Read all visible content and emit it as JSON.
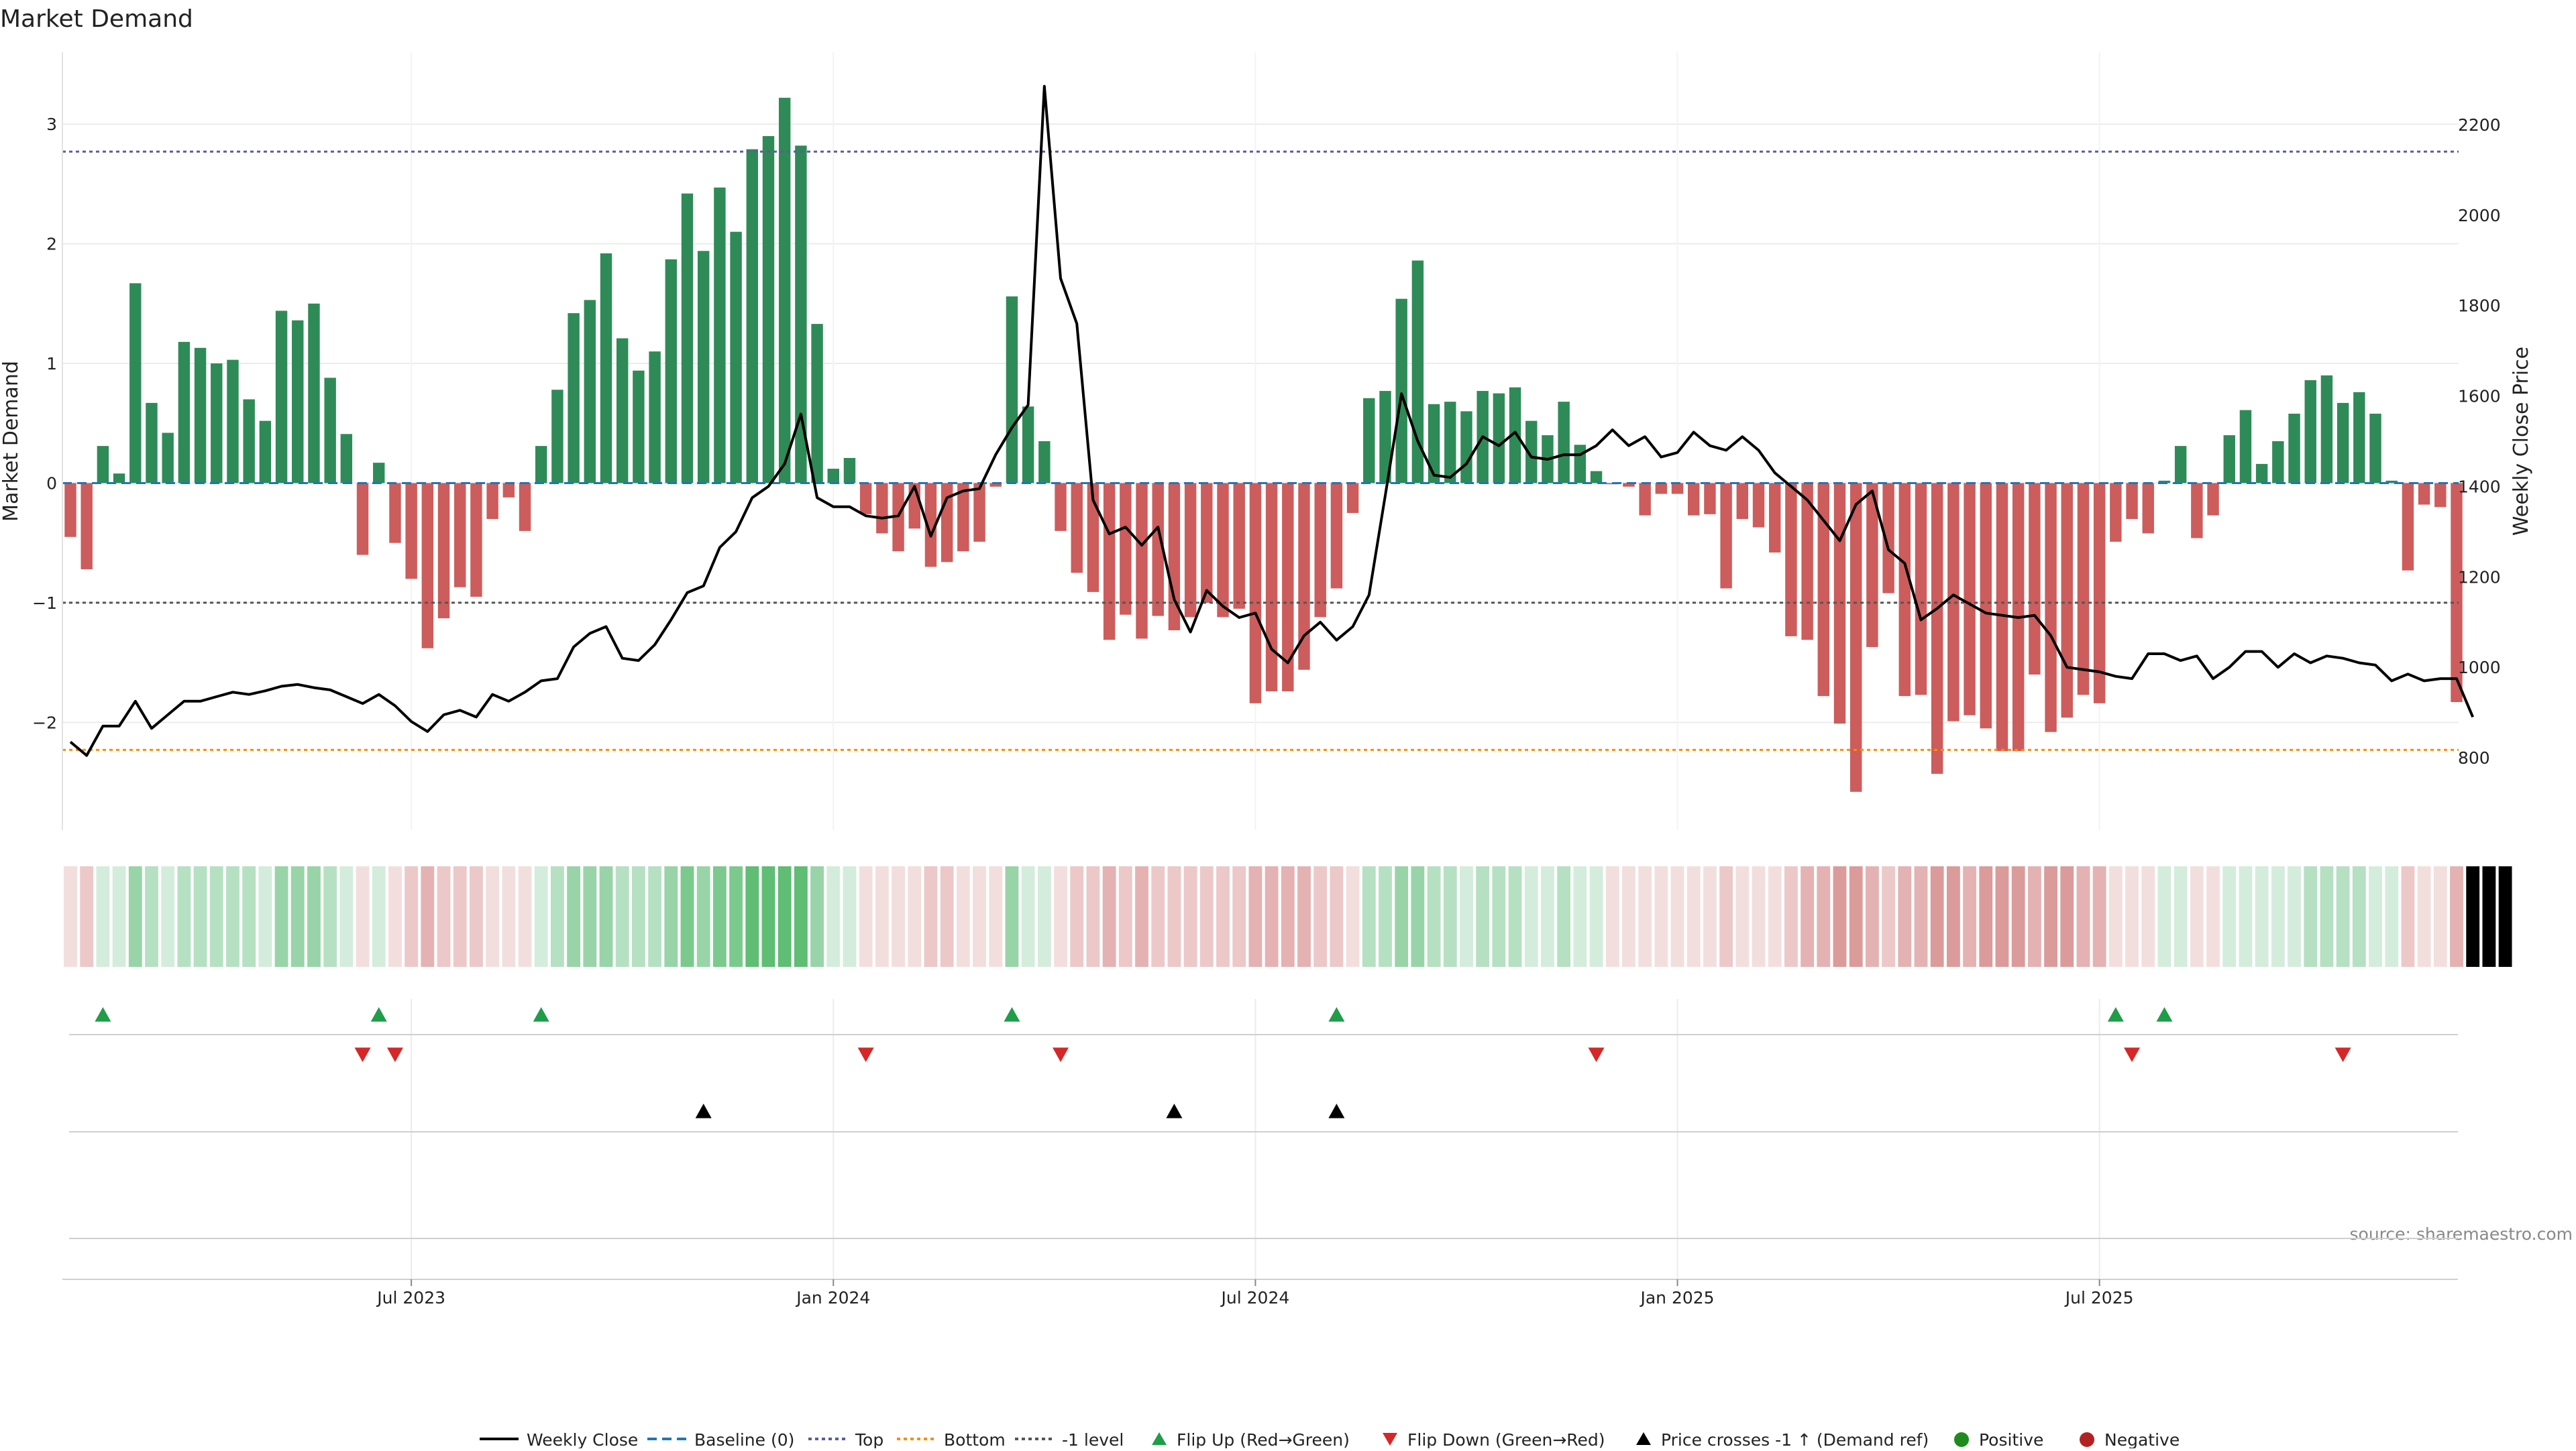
{
  "chart_data": {
    "type": "bar",
    "title": "Market Demand",
    "ylabel": "Market Demand",
    "y2label": "Weekly Close Price",
    "ylim": [
      -2.9,
      3.6
    ],
    "y2lim": [
      640,
      2360
    ],
    "y_ticks": [
      -2,
      -1,
      0,
      1,
      2,
      3
    ],
    "y_tick_labels": [
      "−2",
      "−1",
      "0",
      "1",
      "2",
      "3"
    ],
    "y2_ticks": [
      800,
      1000,
      1200,
      1400,
      1600,
      1800,
      2000,
      2200
    ],
    "y2_tick_labels": [
      "800",
      "1000",
      "1200",
      "1400",
      "1600",
      "1800",
      "2000",
      "2200"
    ],
    "x_ticks": [
      {
        "label": "Jul 2023",
        "week": 21
      },
      {
        "label": "Jan 2024",
        "week": 47
      },
      {
        "label": "Jul 2024",
        "week": 73
      },
      {
        "label": "Jan 2025",
        "week": 99
      },
      {
        "label": "Jul 2025",
        "week": 125
      }
    ],
    "levels": {
      "top": 2.77,
      "bottom": -2.23,
      "minus_one": -1,
      "baseline": 0
    },
    "colors": {
      "positive": "#2e8b57",
      "negative": "#cd5c5c",
      "price": "#000000",
      "baseline": "#1f77b4",
      "top": "#5b5b9e",
      "bottom": "#ff8c00",
      "minus_one": "#555555",
      "flip_up": "#1f9d49",
      "flip_down": "#d62728",
      "cross": "#000000"
    },
    "series": [
      {
        "name": "Market Demand",
        "values": [
          -0.45,
          -0.72,
          0.31,
          0.08,
          1.67,
          0.67,
          0.42,
          1.18,
          1.13,
          1.0,
          1.03,
          0.7,
          0.52,
          1.44,
          1.36,
          1.5,
          0.88,
          0.41,
          -0.6,
          0.17,
          -0.5,
          -0.8,
          -1.38,
          -1.13,
          -0.87,
          -0.95,
          -0.3,
          -0.12,
          -0.4,
          0.31,
          0.78,
          1.42,
          1.53,
          1.92,
          1.21,
          0.94,
          1.1,
          1.87,
          2.42,
          1.94,
          2.47,
          2.1,
          2.79,
          2.9,
          3.22,
          2.82,
          1.33,
          0.12,
          0.21,
          -0.26,
          -0.42,
          -0.57,
          -0.38,
          -0.7,
          -0.66,
          -0.57,
          -0.49,
          -0.03,
          1.56,
          0.64,
          0.35,
          -0.4,
          -0.75,
          -0.91,
          -1.31,
          -1.1,
          -1.3,
          -1.11,
          -1.23,
          -1.12,
          -1.0,
          -1.12,
          -1.05,
          -1.84,
          -1.74,
          -1.74,
          -1.56,
          -1.12,
          -0.88,
          -0.25,
          0.71,
          0.77,
          1.54,
          1.86,
          0.66,
          0.68,
          0.6,
          0.77,
          0.75,
          0.8,
          0.52,
          0.4,
          0.68,
          0.32,
          0.1,
          -0.01,
          -0.03,
          -0.27,
          -0.09,
          -0.09,
          -0.27,
          -0.26,
          -0.88,
          -0.3,
          -0.37,
          -0.58,
          -1.28,
          -1.31,
          -1.78,
          -2.01,
          -2.58,
          -1.37,
          -0.92,
          -1.78,
          -1.77,
          -2.43,
          -1.99,
          -1.94,
          -2.05,
          -2.24,
          -2.24,
          -1.6,
          -2.08,
          -1.96,
          -1.77,
          -1.84,
          -0.49,
          -0.3,
          -0.42,
          0.02,
          0.31,
          -0.46,
          -0.27,
          0.4,
          0.61,
          0.16,
          0.35,
          0.58,
          0.86,
          0.9,
          0.67,
          0.76,
          0.58,
          0.02,
          -0.73,
          -0.18,
          -0.2,
          -1.83
        ]
      },
      {
        "name": "Weekly Close",
        "values": [
          835,
          805,
          870,
          870,
          925,
          865,
          895,
          925,
          925,
          935,
          945,
          940,
          948,
          958,
          962,
          955,
          950,
          935,
          920,
          940,
          915,
          880,
          858,
          895,
          905,
          890,
          940,
          925,
          945,
          970,
          975,
          1045,
          1075,
          1090,
          1020,
          1015,
          1050,
          1105,
          1165,
          1180,
          1265,
          1300,
          1375,
          1400,
          1450,
          1560,
          1375,
          1355,
          1355,
          1335,
          1330,
          1335,
          1400,
          1290,
          1375,
          1390,
          1395,
          1470,
          1530,
          1580,
          2285,
          1860,
          1760,
          1370,
          1295,
          1310,
          1270,
          1310,
          1150,
          1078,
          1170,
          1135,
          1110,
          1120,
          1040,
          1010,
          1070,
          1100,
          1060,
          1090,
          1160,
          1380,
          1605,
          1500,
          1425,
          1420,
          1450,
          1510,
          1490,
          1520,
          1465,
          1460,
          1470,
          1470,
          1490,
          1525,
          1490,
          1510,
          1465,
          1475,
          1520,
          1490,
          1480,
          1510,
          1480,
          1430,
          1400,
          1370,
          1325,
          1280,
          1360,
          1390,
          1260,
          1230,
          1105,
          1130,
          1160,
          1140,
          1120,
          1115,
          1110,
          1115,
          1070,
          1000,
          995,
          990,
          980,
          975,
          1030,
          1030,
          1015,
          1025,
          975,
          1000,
          1035,
          1035,
          1000,
          1030,
          1010,
          1025,
          1020,
          1010,
          1005,
          970,
          985,
          970,
          975,
          975,
          890
        ]
      }
    ],
    "color_strip": [
      2,
      2,
      -1,
      1,
      -3,
      2,
      2,
      -2,
      -2,
      -2,
      -2,
      2,
      2,
      -2,
      2,
      -2,
      2,
      2,
      0,
      -1,
      0,
      1,
      1,
      0,
      0,
      0,
      0,
      0,
      0,
      -1,
      -1,
      2,
      2,
      2,
      2,
      -2,
      2,
      2,
      -3,
      2,
      -3,
      2,
      -3,
      3,
      3,
      3,
      -2,
      -1,
      2,
      1,
      1,
      0,
      1,
      0,
      0,
      0,
      1,
      1,
      -2,
      -1,
      2,
      1,
      1,
      1,
      1,
      1,
      1,
      1,
      1,
      1,
      1,
      1,
      1,
      1,
      1,
      1,
      1,
      1,
      1,
      1,
      -1,
      -1,
      -1,
      -3,
      -1,
      -1,
      -1,
      -1,
      -1,
      -1,
      -1,
      -2,
      -1,
      -1,
      -1,
      -1,
      -1,
      -1,
      0,
      0,
      0,
      0,
      0,
      0,
      0,
      0,
      1,
      1,
      1,
      2,
      2,
      2,
      3,
      1,
      2,
      2,
      2,
      2,
      1,
      2,
      2,
      2,
      2,
      2,
      1,
      1,
      1,
      1,
      1,
      0,
      0,
      0,
      -1,
      1,
      0,
      1,
      -1,
      -1,
      -1,
      -2,
      -1,
      -1,
      -1,
      -1,
      -1,
      -1,
      -1,
      0,
      0,
      0,
      2
    ],
    "flip_up_weeks": [
      2,
      19,
      29,
      58,
      78,
      126,
      129
    ],
    "flip_down_weeks": [
      18,
      20,
      49,
      61,
      94,
      127,
      140
    ],
    "price_cross_weeks": [
      39,
      68,
      78
    ],
    "legend": [
      {
        "label": "Weekly Close"
      },
      {
        "label": "Baseline (0)"
      },
      {
        "label": "Top"
      },
      {
        "label": "Bottom"
      },
      {
        "label": "-1 level"
      },
      {
        "label": "Flip Up (Red→Green)"
      },
      {
        "label": "Flip Down (Green→Red)"
      },
      {
        "label": "Price crosses -1 ↑ (Demand ref)"
      },
      {
        "label": "Positive"
      },
      {
        "label": "Negative"
      }
    ],
    "source": "source: sharemaestro.com"
  }
}
